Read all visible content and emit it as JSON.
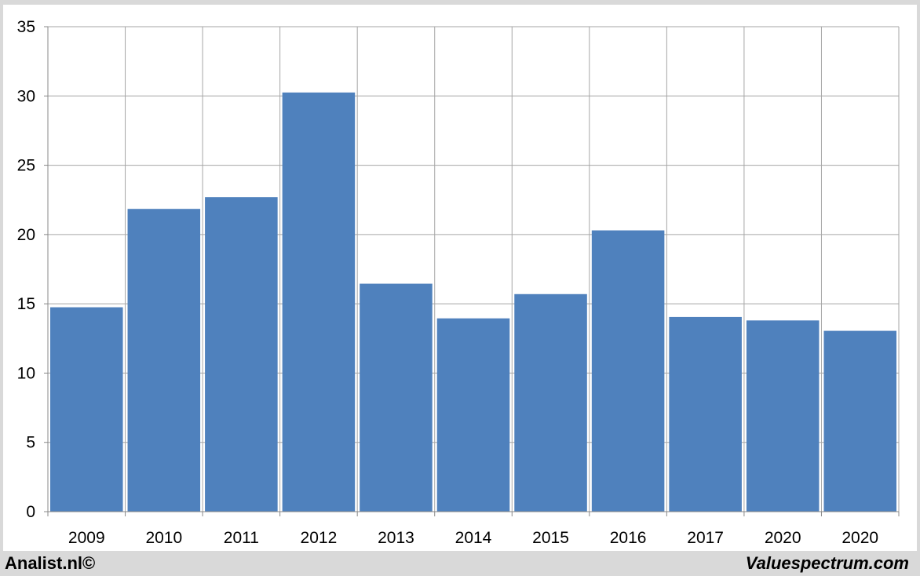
{
  "chart_data": {
    "type": "bar",
    "title": "",
    "xlabel": "",
    "ylabel": "",
    "categories": [
      "2009",
      "2010",
      "2011",
      "2012",
      "2013",
      "2014",
      "2015",
      "2016",
      "2017",
      "2020",
      "2020"
    ],
    "values": [
      14.75,
      21.85,
      22.7,
      30.25,
      16.45,
      13.95,
      15.7,
      20.3,
      14.05,
      13.8,
      13.05
    ],
    "ylim": [
      0,
      35
    ],
    "yticks": [
      0,
      5,
      10,
      15,
      20,
      25,
      30,
      35
    ],
    "grid": true,
    "legend": "none",
    "colors": {
      "bar": "#4f81bd",
      "grid": "#a6a6a6",
      "axis": "#888888",
      "background": "#ffffff",
      "frame": "#d9d9d9"
    }
  },
  "footer": {
    "left": "Analist.nl©",
    "right": "Valuespectrum.com"
  }
}
